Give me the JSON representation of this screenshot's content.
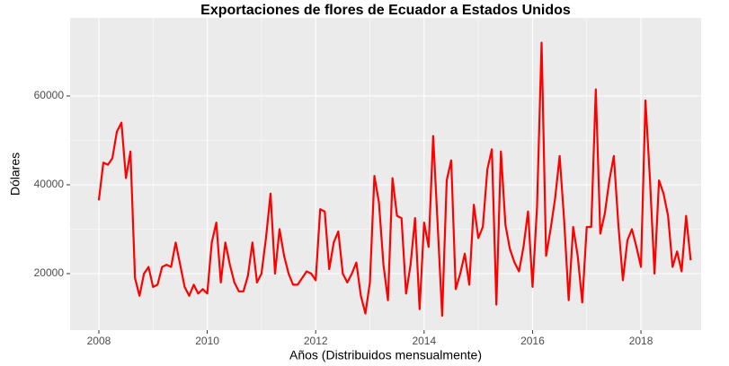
{
  "chart_data": {
    "type": "line",
    "title": "Exportaciones de flores de Ecuador a Estados Unidos",
    "x_label": "Años (Distribuidos mensualmente)",
    "y_label": "Dólares",
    "x": [
      2008,
      2008.083,
      2008.167,
      2008.25,
      2008.333,
      2008.417,
      2008.5,
      2008.583,
      2008.667,
      2008.75,
      2008.833,
      2008.917,
      2009,
      2009.083,
      2009.167,
      2009.25,
      2009.333,
      2009.417,
      2009.5,
      2009.583,
      2009.667,
      2009.75,
      2009.833,
      2009.917,
      2010,
      2010.083,
      2010.167,
      2010.25,
      2010.333,
      2010.417,
      2010.5,
      2010.583,
      2010.667,
      2010.75,
      2010.833,
      2010.917,
      2011,
      2011.083,
      2011.167,
      2011.25,
      2011.333,
      2011.417,
      2011.5,
      2011.583,
      2011.667,
      2011.75,
      2011.833,
      2011.917,
      2012,
      2012.083,
      2012.167,
      2012.25,
      2012.333,
      2012.417,
      2012.5,
      2012.583,
      2012.667,
      2012.75,
      2012.833,
      2012.917,
      2013,
      2013.083,
      2013.167,
      2013.25,
      2013.333,
      2013.417,
      2013.5,
      2013.583,
      2013.667,
      2013.75,
      2013.833,
      2013.917,
      2014,
      2014.083,
      2014.167,
      2014.25,
      2014.333,
      2014.417,
      2014.5,
      2014.583,
      2014.667,
      2014.75,
      2014.833,
      2014.917,
      2015,
      2015.083,
      2015.167,
      2015.25,
      2015.333,
      2015.417,
      2015.5,
      2015.583,
      2015.667,
      2015.75,
      2015.833,
      2015.917,
      2016,
      2016.083,
      2016.167,
      2016.25,
      2016.333,
      2016.417,
      2016.5,
      2016.583,
      2016.667,
      2016.75,
      2016.833,
      2016.917,
      2017,
      2017.083,
      2017.167,
      2017.25,
      2017.333,
      2017.417,
      2017.5,
      2017.583,
      2017.667,
      2017.75,
      2017.833,
      2017.917,
      2018,
      2018.083,
      2018.167,
      2018.25,
      2018.333,
      2018.417,
      2018.5,
      2018.583,
      2018.667,
      2018.75,
      2018.833,
      2018.917
    ],
    "series": [
      {
        "color": "#ff0000",
        "values": [
          36500,
          45000,
          44500,
          46000,
          52000,
          54000,
          41500,
          47500,
          19000,
          15000,
          20000,
          21500,
          17000,
          17500,
          21500,
          22000,
          21500,
          27000,
          22000,
          17000,
          15000,
          17500,
          15500,
          16500,
          15500,
          27000,
          31500,
          18000,
          27000,
          22000,
          18000,
          16000,
          16000,
          19500,
          27000,
          18000,
          20000,
          28000,
          38000,
          20000,
          30000,
          24000,
          20000,
          17500,
          17500,
          19000,
          20500,
          20000,
          18500,
          34500,
          34000,
          21000,
          27000,
          29500,
          20000,
          18000,
          20000,
          22500,
          15000,
          11000,
          18000,
          42000,
          36000,
          22000,
          14000,
          41500,
          33000,
          32500,
          15500,
          22000,
          32500,
          12000,
          31500,
          26000,
          51000,
          31000,
          10500,
          41000,
          45500,
          16500,
          20000,
          24500,
          17500,
          35500,
          28000,
          30500,
          43500,
          48000,
          13000,
          47500,
          31000,
          25500,
          22500,
          20500,
          26000,
          34000,
          17000,
          35000,
          72000,
          24000,
          30000,
          37000,
          46500,
          32000,
          14000,
          30500,
          24000,
          13500,
          30500,
          30500,
          61500,
          29000,
          33500,
          41000,
          46500,
          31000,
          18500,
          27500,
          30000,
          26000,
          21500,
          59000,
          41000,
          20000,
          41000,
          38000,
          33000,
          21500,
          25000,
          20500,
          33000,
          23000
        ]
      }
    ],
    "xlim": [
      2007.47,
      2019.11
    ],
    "xticks": [
      2008,
      2010,
      2012,
      2014,
      2016,
      2018
    ],
    "ylim": [
      7270,
      77580
    ],
    "yticks": [
      20000,
      40000,
      60000
    ],
    "grid": true,
    "panel_color": "#ebebeb"
  }
}
